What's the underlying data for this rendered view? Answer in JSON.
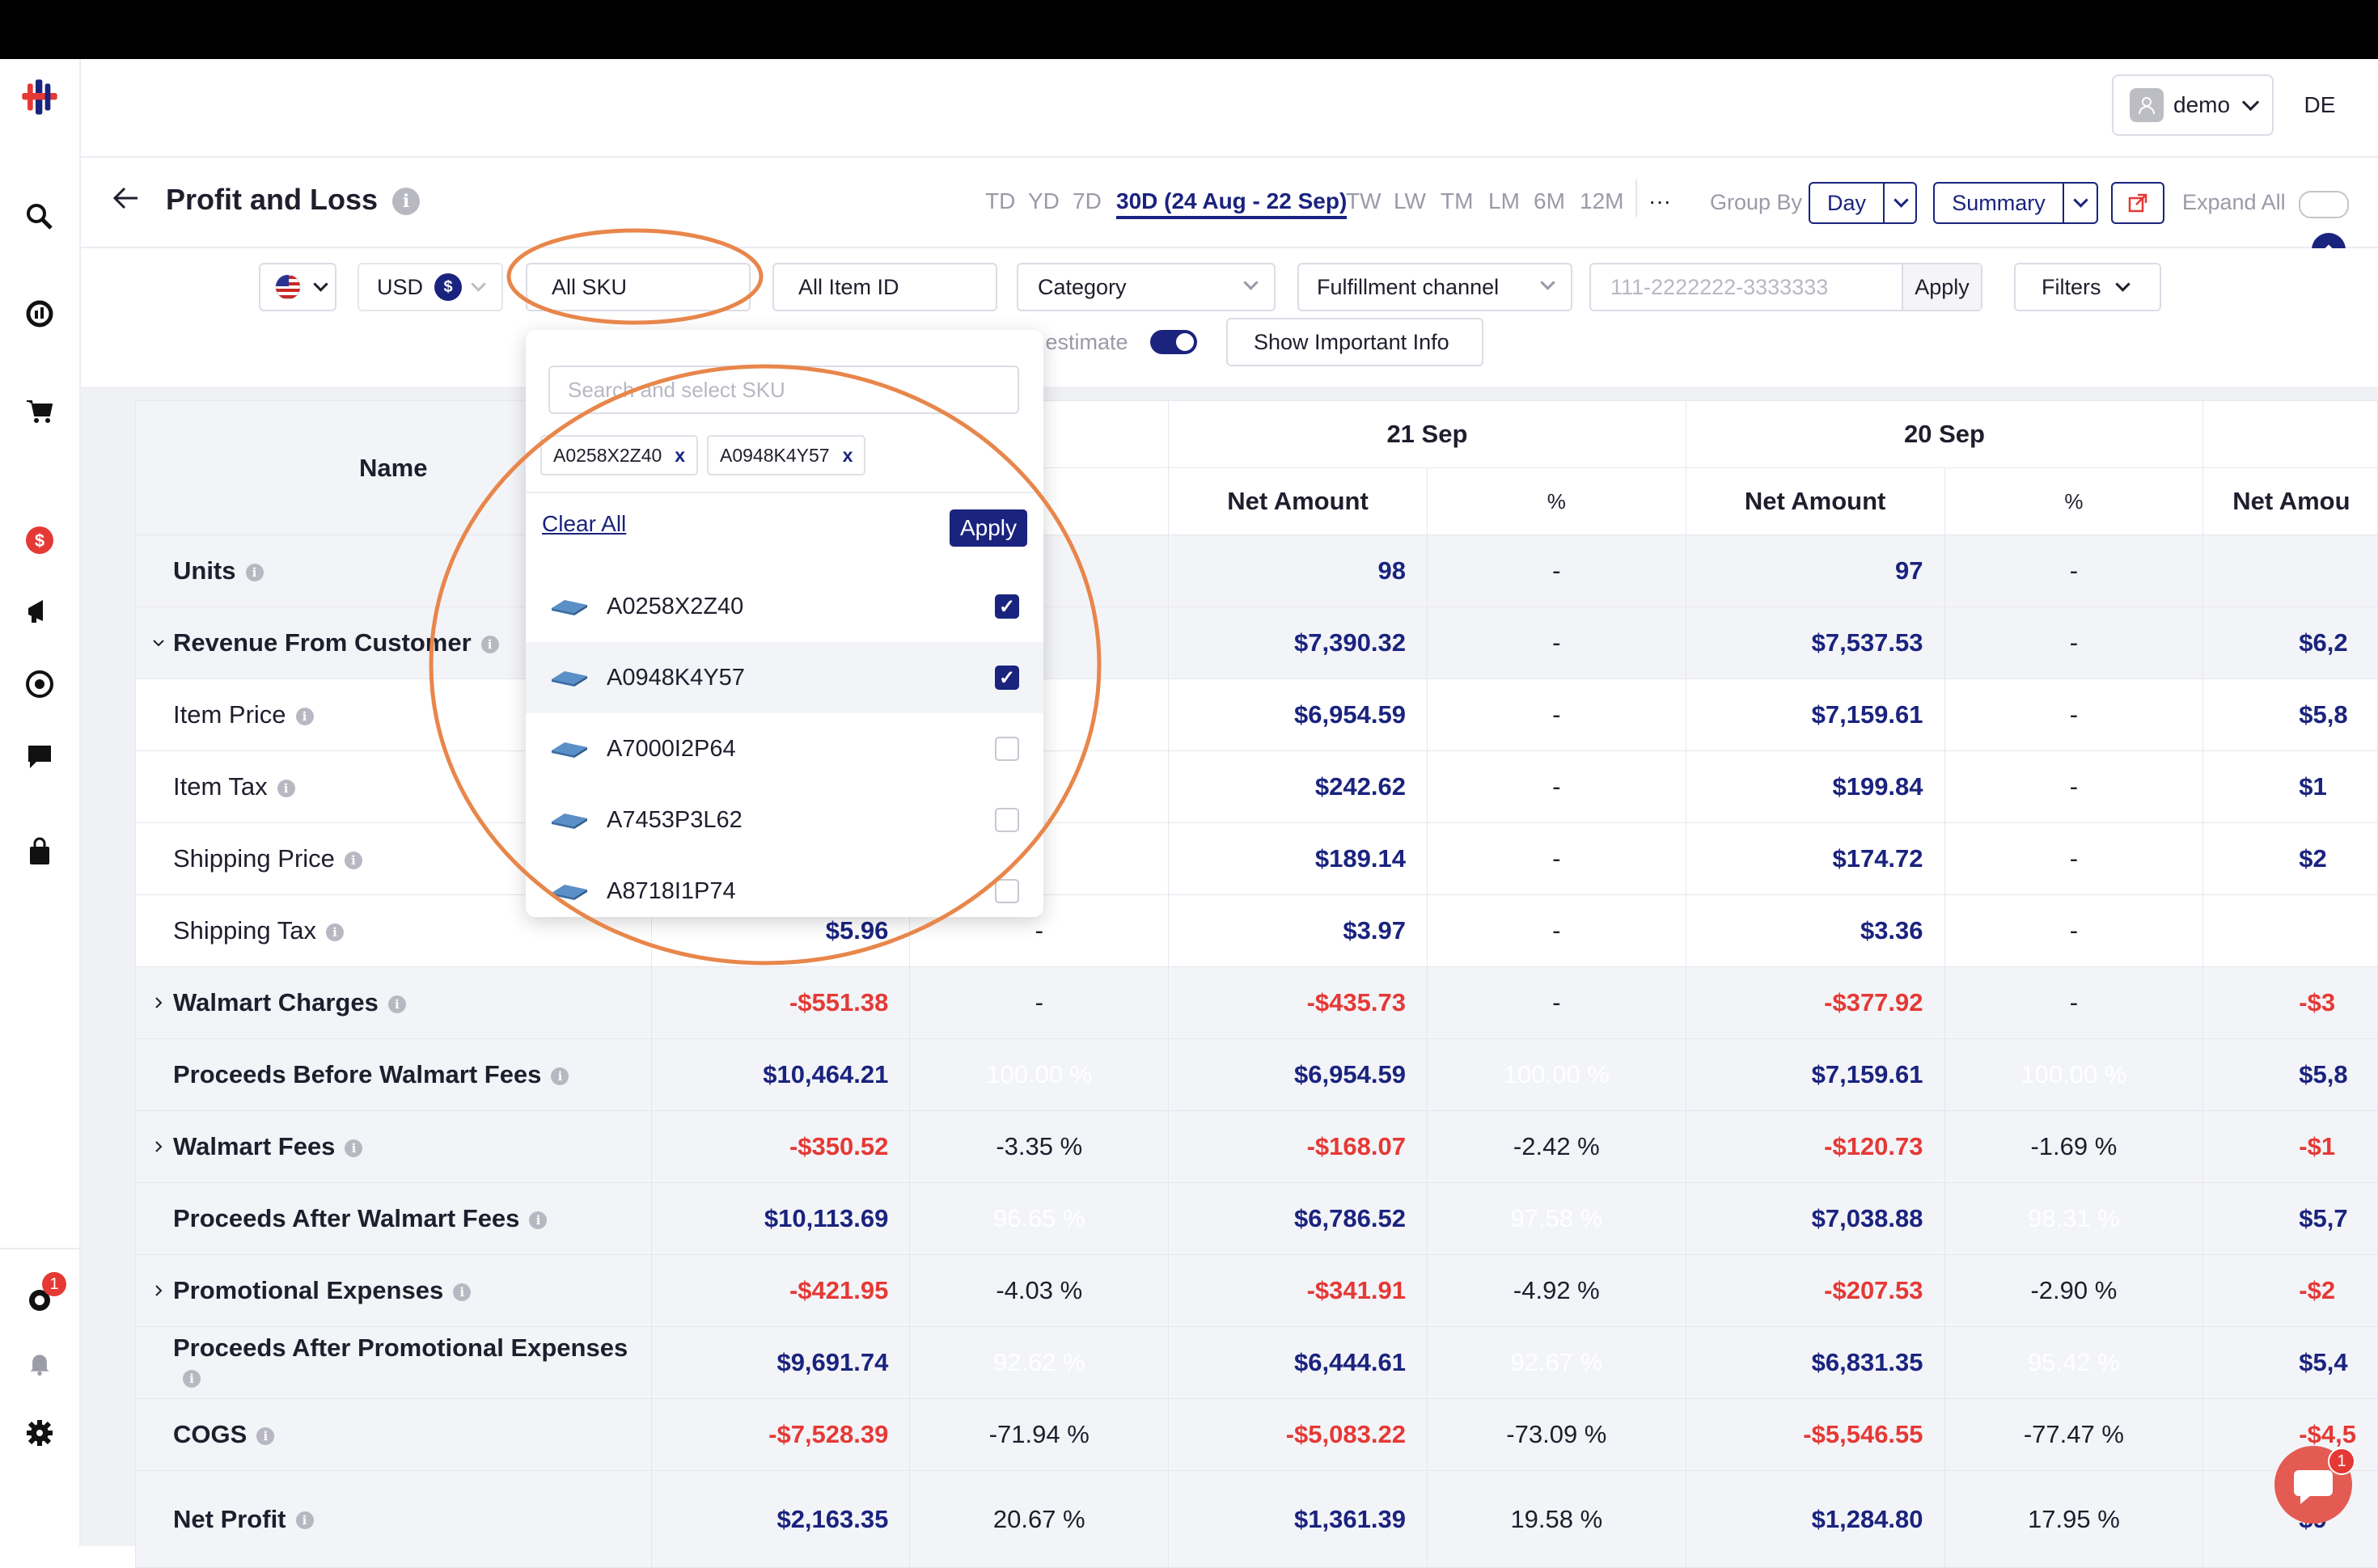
{
  "header": {
    "user_label": "demo",
    "initials": "DE"
  },
  "title": {
    "label": "Profit and Loss"
  },
  "date_ranges": [
    {
      "label": "TD"
    },
    {
      "label": "YD"
    },
    {
      "label": "7D"
    },
    {
      "label": "30D (24 Aug - 22 Sep)",
      "active": true
    },
    {
      "label": "TW"
    },
    {
      "label": "LW"
    },
    {
      "label": "TM"
    },
    {
      "label": "LM"
    },
    {
      "label": "6M"
    },
    {
      "label": "12M"
    },
    {
      "label": "···"
    }
  ],
  "controls": {
    "group_by_label": "Group By",
    "group_by_value": "Day",
    "view_value": "Summary",
    "expand_all_label": "Expand All"
  },
  "filters": {
    "currency": "USD",
    "currency_symbol": "$",
    "sku": "All SKU",
    "item_id": "All Item ID",
    "category": "Category",
    "fulfillment": "Fulfillment channel",
    "order_placeholder": "111-2222222-3333333",
    "apply_label": "Apply",
    "filters_label": "Filters",
    "estimate_label": "e estimate",
    "important_info_label": "Show Important Info"
  },
  "sku_dropdown": {
    "search_placeholder": "Search and select SKU",
    "chips": [
      "A0258X2Z40",
      "A0948K4Y57"
    ],
    "chip_remove": "x",
    "clear_all": "Clear All",
    "apply": "Apply",
    "items": [
      {
        "sku": "A0258X2Z40",
        "checked": true
      },
      {
        "sku": "A0948K4Y57",
        "checked": true
      },
      {
        "sku": "A7000I2P64",
        "checked": false
      },
      {
        "sku": "A7453P3L62",
        "checked": false
      },
      {
        "sku": "A8718I1P74",
        "checked": false
      }
    ]
  },
  "table": {
    "name_header": "Name",
    "dates": [
      "21 Sep",
      "20 Sep"
    ],
    "net_amount": "Net Amount",
    "net_amount_cut": "Net Amou",
    "pct": "%",
    "rows": [
      {
        "name": "Units",
        "bold": true,
        "c1": "",
        "p1": "",
        "c2": "98",
        "p2": "-",
        "c3": "97",
        "p3": "-",
        "c4": ""
      },
      {
        "name": "Revenue From Customer",
        "bold": true,
        "caret": "v",
        "c1": "",
        "p1": "",
        "c2": "$7,390.32",
        "p2": "-",
        "c3": "$7,537.53",
        "p3": "-",
        "c4": "$6,2"
      },
      {
        "name": "Item Price",
        "c1": "",
        "p1": "",
        "c2": "$6,954.59",
        "p2": "-",
        "c3": "$7,159.61",
        "p3": "-",
        "c4": "$5,8"
      },
      {
        "name": "Item Tax",
        "c1": "",
        "p1": "",
        "c2": "$242.62",
        "p2": "-",
        "c3": "$199.84",
        "p3": "-",
        "c4": "$1"
      },
      {
        "name": "Shipping Price",
        "c1": "",
        "p1": "",
        "c2": "$189.14",
        "p2": "-",
        "c3": "$174.72",
        "p3": "-",
        "c4": "$2"
      },
      {
        "name": "Shipping Tax",
        "c1": "$5.96",
        "p1": "-",
        "c2": "$3.97",
        "p2": "-",
        "c3": "$3.36",
        "p3": "-",
        "c4": ""
      },
      {
        "name": "Walmart Charges",
        "bold": true,
        "caret": ">",
        "c1": "-$551.38",
        "p1": "-",
        "c2": "-$435.73",
        "p2": "-",
        "c3": "-$377.92",
        "p3": "-",
        "c4": "-$3"
      },
      {
        "name": "Proceeds Before Walmart Fees",
        "bold": true,
        "c1": "$10,464.21",
        "p1": "100.00 %",
        "c2": "$6,954.59",
        "p2": "100.00 %",
        "c3": "$7,159.61",
        "p3": "100.00 %",
        "c4": "$5,8"
      },
      {
        "name": "Walmart Fees",
        "bold": true,
        "caret": ">",
        "c1": "-$350.52",
        "p1": "-3.35 %",
        "c2": "-$168.07",
        "p2": "-2.42 %",
        "c3": "-$120.73",
        "p3": "-1.69 %",
        "c4": "-$1"
      },
      {
        "name": "Proceeds After Walmart Fees",
        "bold": true,
        "c1": "$10,113.69",
        "p1": "96.65 %",
        "c2": "$6,786.52",
        "p2": "97.58 %",
        "c3": "$7,038.88",
        "p3": "98.31 %",
        "c4": "$5,7"
      },
      {
        "name": "Promotional Expenses",
        "bold": true,
        "caret": ">",
        "c1": "-$421.95",
        "p1": "-4.03 %",
        "c2": "-$341.91",
        "p2": "-4.92 %",
        "c3": "-$207.53",
        "p3": "-2.90 %",
        "c4": "-$2"
      },
      {
        "name": "Proceeds After Promotional Expenses",
        "bold": true,
        "c1": "$9,691.74",
        "p1": "92.62 %",
        "c2": "$6,444.61",
        "p2": "92.67 %",
        "c3": "$6,831.35",
        "p3": "95.42 %",
        "c4": "$5,4"
      },
      {
        "name": "COGS",
        "bold": true,
        "c1": "-$7,528.39",
        "p1": "-71.94 %",
        "c2": "-$5,083.22",
        "p2": "-73.09 %",
        "c3": "-$5,546.55",
        "p3": "-77.47 %",
        "c4": "-$4,5"
      },
      {
        "name": "Net Profit",
        "bold": true,
        "c1": "$2,163.35",
        "p1": "20.67 %",
        "c2": "$1,361.39",
        "p2": "19.58 %",
        "c3": "$1,284.80",
        "p3": "17.95 %",
        "c4": "$9"
      }
    ]
  },
  "notifications": {
    "badge": "1"
  },
  "chat": {
    "badge": "1"
  },
  "colors": {
    "accent": "#1a237e",
    "negative": "#e53935",
    "green_dark": "#5aab3d",
    "green_light": "#d7efd0",
    "red_light": "#f2e1e1",
    "red_dark": "#e35b52",
    "highlight_circle": "#e8864b"
  }
}
